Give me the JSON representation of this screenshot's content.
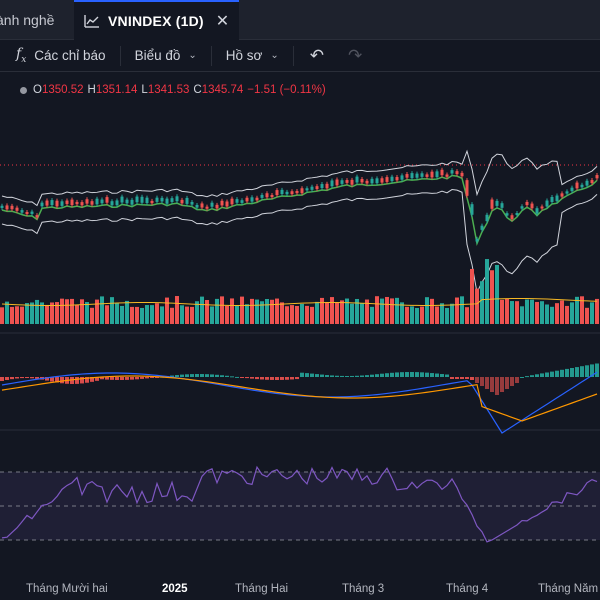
{
  "tabs": {
    "inactive_label": "ành nghề",
    "active_label": "VNINDEX (1D)",
    "close_glyph": "✕"
  },
  "toolbar": {
    "indicators_icon": "fx-icon",
    "indicators_label": "Các chỉ báo",
    "chart_label": "Biểu đồ",
    "profile_label": "Hồ sơ",
    "undo_icon": "undo-icon",
    "redo_icon": "redo-icon"
  },
  "ohlc": {
    "o_label": "O",
    "o_value": "1350.52",
    "h_label": "H",
    "h_value": "1351.14",
    "l_label": "L",
    "l_value": "1341.53",
    "c_label": "C",
    "c_value": "1345.74",
    "change": "−1.51 (−0.11%)"
  },
  "x_axis": {
    "labels": [
      "Tháng Mười hai",
      "2025",
      "Tháng Hai",
      "Tháng 3",
      "Tháng 4",
      "Tháng Năm"
    ]
  },
  "colors": {
    "background": "#131722",
    "up": "#26a69a",
    "down": "#ef5350",
    "bollinger_band": "#d1d4dc",
    "basis": "#4caf50",
    "macd": "#2962ff",
    "signal": "#ff9800",
    "rsi": "#7e57c2"
  }
}
